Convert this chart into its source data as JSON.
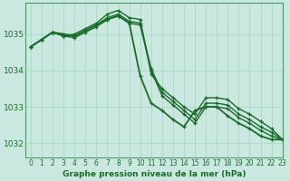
{
  "title": "Graphe pression niveau de la mer (hPa)",
  "background_color": "#cbe8e0",
  "grid_color": "#a8d8c8",
  "line_color": "#1a6b2a",
  "spine_color": "#4a9a6a",
  "xlim": [
    -0.5,
    23
  ],
  "ylim": [
    1031.6,
    1035.85
  ],
  "yticks": [
    1032,
    1033,
    1034,
    1035
  ],
  "xticks": [
    0,
    1,
    2,
    3,
    4,
    5,
    6,
    7,
    8,
    9,
    10,
    11,
    12,
    13,
    14,
    15,
    16,
    17,
    18,
    19,
    20,
    21,
    22,
    23
  ],
  "series": [
    [
      1034.65,
      1034.85,
      1035.05,
      1034.95,
      1035.0,
      1035.15,
      1035.3,
      1035.55,
      1035.65,
      1035.45,
      1035.4,
      1033.9,
      1033.5,
      1033.25,
      1033.0,
      1032.8,
      1033.25,
      1033.25,
      1033.2,
      1032.95,
      1032.8,
      1032.6,
      1032.4,
      1032.1
    ],
    [
      1034.65,
      1034.85,
      1035.05,
      1034.95,
      1034.95,
      1035.1,
      1035.25,
      1035.45,
      1035.55,
      1035.35,
      1035.3,
      1034.05,
      1033.4,
      1033.15,
      1032.9,
      1032.65,
      1033.1,
      1033.1,
      1033.05,
      1032.8,
      1032.65,
      1032.45,
      1032.3,
      1032.1
    ],
    [
      1034.65,
      1034.85,
      1035.05,
      1034.95,
      1034.9,
      1035.05,
      1035.2,
      1035.4,
      1035.5,
      1035.3,
      1035.25,
      1034.0,
      1033.3,
      1033.05,
      1032.8,
      1032.55,
      1033.0,
      1033.0,
      1032.95,
      1032.7,
      1032.55,
      1032.35,
      1032.2,
      1032.1
    ],
    [
      1034.65,
      1034.85,
      1035.05,
      1035.0,
      1034.95,
      1035.1,
      1035.25,
      1035.4,
      1035.5,
      1035.3,
      1033.85,
      1033.1,
      1032.9,
      1032.65,
      1032.45,
      1032.9,
      1033.0,
      1033.0,
      1032.75,
      1032.55,
      1032.4,
      1032.2,
      1032.1,
      1032.1
    ]
  ]
}
